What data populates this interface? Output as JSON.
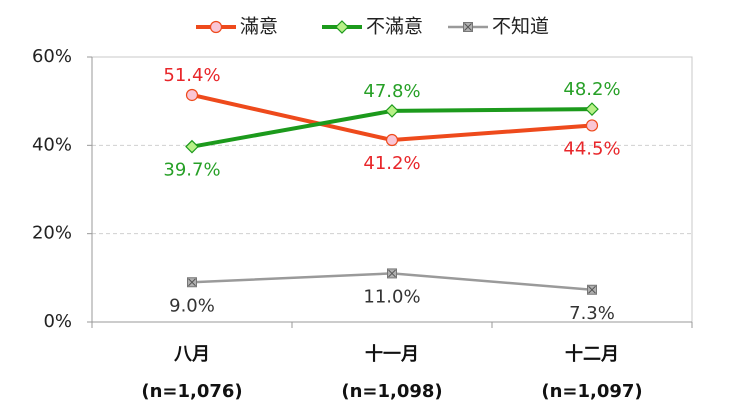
{
  "chart_data": {
    "type": "line",
    "categories": [
      "八月",
      "十一月",
      "十二月"
    ],
    "category_notes": [
      "(n=1,076)",
      "(n=1,098)",
      "(n=1,097)"
    ],
    "series": [
      {
        "name": "滿意",
        "color": "#ee4a1c",
        "marker_fill": "#f9c6d6",
        "marker": "circle",
        "values": [
          51.4,
          41.2,
          44.5
        ],
        "value_labels": [
          "51.4%",
          "41.2%",
          "44.5%"
        ],
        "label_color": "#e8262a"
      },
      {
        "name": "不滿意",
        "color": "#1c9a1c",
        "marker_fill": "#b8f088",
        "marker": "diamond",
        "values": [
          39.7,
          47.8,
          48.2
        ],
        "value_labels": [
          "39.7%",
          "47.8%",
          "48.2%"
        ],
        "label_color": "#27a027"
      },
      {
        "name": "不知道",
        "color": "#9a9a9a",
        "marker_fill": "#b0b0b0",
        "marker": "square",
        "values": [
          9.0,
          11.0,
          7.3
        ],
        "value_labels": [
          "9.0%",
          "11.0%",
          "7.3%"
        ],
        "label_color": "#333333"
      }
    ],
    "ylim": [
      0,
      60
    ],
    "yticks": [
      {
        "value": 0,
        "label": "0%"
      },
      {
        "value": 20,
        "label": "20%"
      },
      {
        "value": 40,
        "label": "40%"
      },
      {
        "value": 60,
        "label": "60%"
      }
    ],
    "grid": true
  }
}
